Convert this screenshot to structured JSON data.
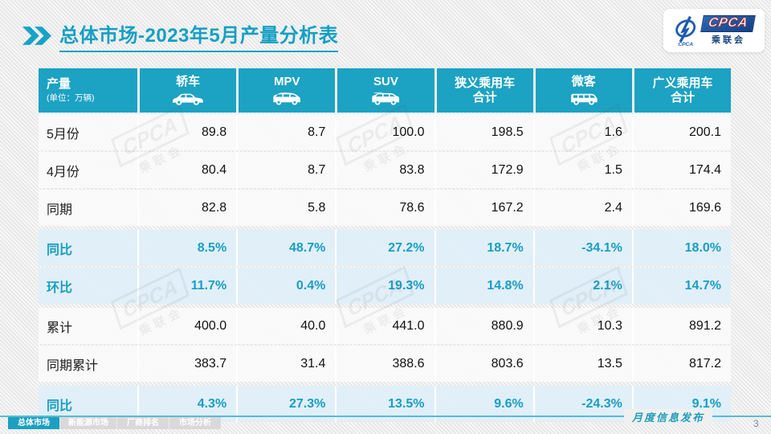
{
  "title": {
    "prefix": "总体市场",
    "suffix": "-2023年5月产量分析表"
  },
  "logo": {
    "acronym": "CPCA",
    "chinese": "乘联会",
    "emblem": "CPCA"
  },
  "watermark": {
    "acronym": "CPCA",
    "chinese": "乘联会"
  },
  "table": {
    "corner": {
      "label": "产量",
      "unit": "(单位：万辆)"
    },
    "columns": [
      {
        "title": "轿车",
        "subtitle": "",
        "icon": "sedan"
      },
      {
        "title": "MPV",
        "subtitle": "",
        "icon": "mpv"
      },
      {
        "title": "SUV",
        "subtitle": "",
        "icon": "suv"
      },
      {
        "title": "狭义乘用车",
        "subtitle": "合计",
        "icon": ""
      },
      {
        "title": "微客",
        "subtitle": "",
        "icon": "microvan"
      },
      {
        "title": "广义乘用车",
        "subtitle": "合计",
        "icon": ""
      }
    ],
    "rows": [
      {
        "label": "5月份",
        "type": "normal",
        "values": [
          "89.8",
          "8.7",
          "100.0",
          "198.5",
          "1.6",
          "200.1"
        ]
      },
      {
        "label": "4月份",
        "type": "normal",
        "values": [
          "80.4",
          "8.7",
          "83.8",
          "172.9",
          "1.5",
          "174.4"
        ]
      },
      {
        "label": "同期",
        "type": "normal",
        "values": [
          "82.8",
          "5.8",
          "78.6",
          "167.2",
          "2.4",
          "169.6"
        ]
      },
      {
        "label": "同比",
        "type": "percent",
        "values": [
          "8.5%",
          "48.7%",
          "27.2%",
          "18.7%",
          "-34.1%",
          "18.0%"
        ]
      },
      {
        "label": "环比",
        "type": "percent",
        "values": [
          "11.7%",
          "0.4%",
          "19.3%",
          "14.8%",
          "2.1%",
          "14.7%"
        ]
      },
      {
        "label": "累计",
        "type": "normal",
        "values": [
          "400.0",
          "40.0",
          "441.0",
          "880.9",
          "10.3",
          "891.2"
        ]
      },
      {
        "label": "同期累计",
        "type": "normal",
        "values": [
          "383.7",
          "31.4",
          "388.6",
          "803.6",
          "13.5",
          "817.2"
        ]
      },
      {
        "label": "同比",
        "type": "percent",
        "values": [
          "4.3%",
          "27.3%",
          "13.5%",
          "9.6%",
          "-24.3%",
          "9.1%"
        ]
      }
    ],
    "group_starts": [
      3,
      5,
      7
    ]
  },
  "footer": {
    "tabs": [
      {
        "label": "总体市场",
        "active": true
      },
      {
        "label": "新能源市场",
        "active": false
      },
      {
        "label": "厂商排名",
        "active": false
      },
      {
        "label": "市场分析",
        "active": false
      }
    ],
    "publication": "月度信息发布",
    "page_number": "3"
  },
  "colors": {
    "accent_teal": "#1CA2C2",
    "percent_text": "#189EC3",
    "percent_row_bg": "#DFEFF8",
    "row_bg": "#FAFAFA",
    "tab_inactive_bg": "#D9D9D9",
    "footer_line": "#56BCD6",
    "logo_blue": "#153F86",
    "logo_red": "#C03030"
  }
}
